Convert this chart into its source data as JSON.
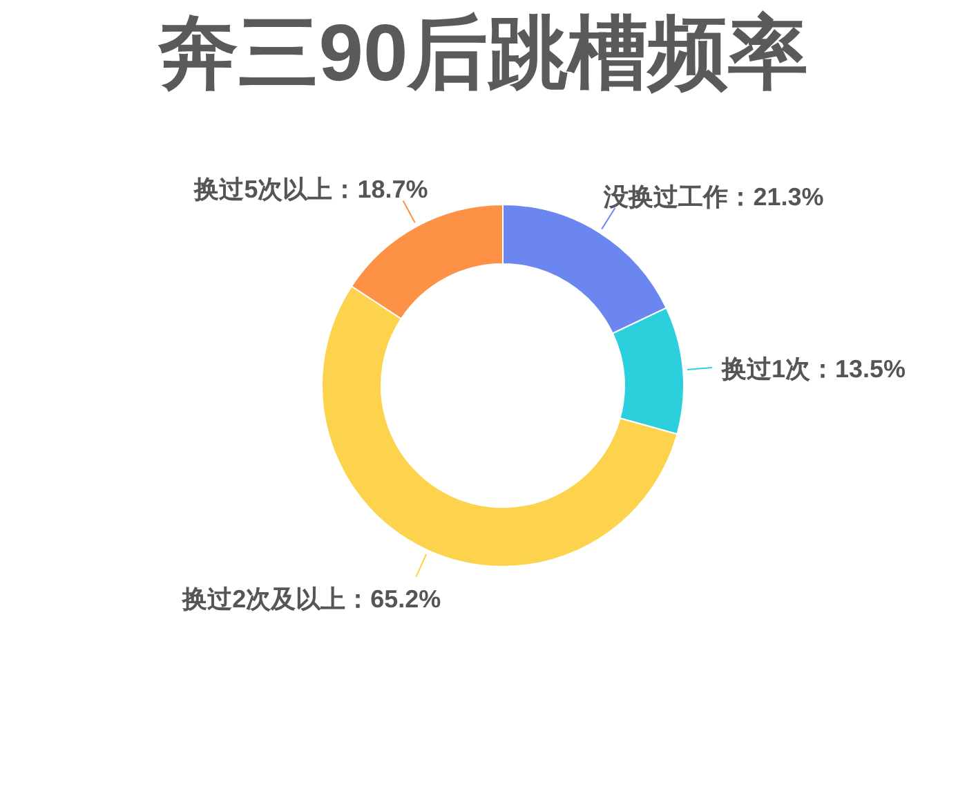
{
  "chart_data": {
    "type": "donut",
    "title": "奔三90后跳槽频率",
    "categories": [
      "没换过工作",
      "换过1次",
      "换过2次及以上",
      "换过5次以上"
    ],
    "values": [
      21.3,
      13.5,
      65.2,
      18.7
    ],
    "colors": [
      "#6b86ef",
      "#2ccfdc",
      "#fdd34d",
      "#fd9145"
    ],
    "value_labels": [
      "21.3%",
      "13.5%",
      "65.2%",
      "18.7%"
    ]
  }
}
